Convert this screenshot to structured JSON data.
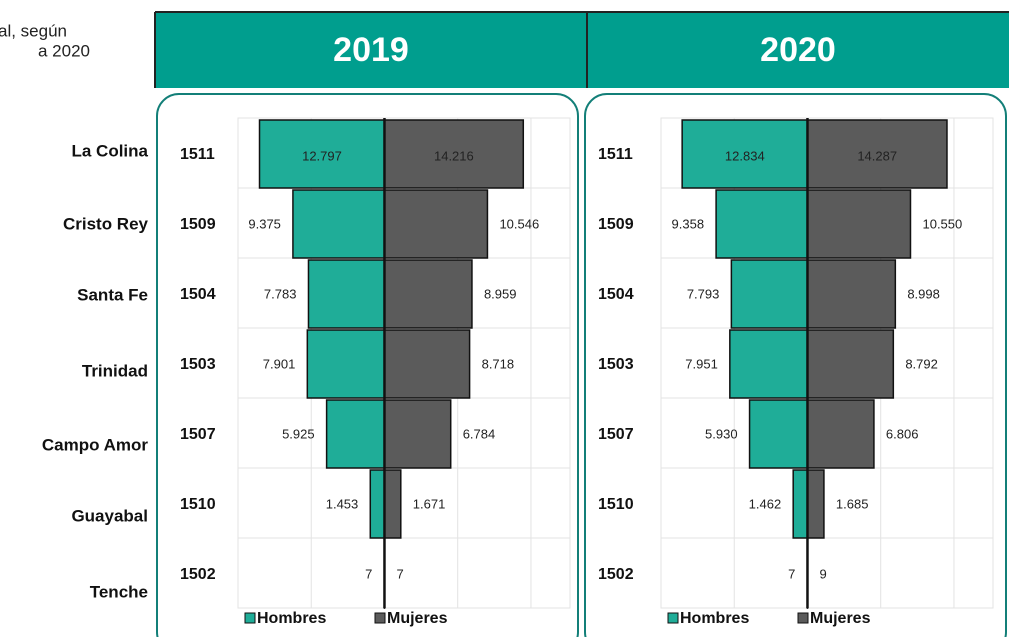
{
  "header": {
    "title_lines": [
      "al, según",
      "a 2020"
    ]
  },
  "row_labels": [
    "La Colina",
    "Cristo Rey",
    "Santa Fe",
    "Trinidad",
    "Campo Amor",
    "Guayabal",
    "Tenche"
  ],
  "chart_data": [
    {
      "type": "bar",
      "orientation": "horizontal",
      "title": "2019",
      "categories": [
        "1511",
        "1509",
        "1504",
        "1503",
        "1507",
        "1510",
        "1502"
      ],
      "series": [
        {
          "name": "Hombres",
          "color": "#1fad98",
          "direction": "left",
          "values": [
            12797,
            9375,
            7783,
            7901,
            5925,
            1453,
            7
          ],
          "value_labels": [
            "12.797",
            "9.375",
            "7.783",
            "7.901",
            "5.925",
            "1.453",
            "7"
          ]
        },
        {
          "name": "Mujeres",
          "color": "#5b5b5b",
          "direction": "right",
          "values": [
            14216,
            10546,
            8959,
            8718,
            6784,
            1671,
            7
          ],
          "value_labels": [
            "14.216",
            "10.546",
            "8.959",
            "8.718",
            "6.784",
            "1.671",
            "7"
          ]
        }
      ],
      "xlim": [
        -15000,
        19000
      ],
      "xticks": [
        -15000,
        -7500,
        0,
        7500,
        15000
      ],
      "grid": true,
      "legend": "bottom"
    },
    {
      "type": "bar",
      "orientation": "horizontal",
      "title": "2020",
      "categories": [
        "1511",
        "1509",
        "1504",
        "1503",
        "1507",
        "1510",
        "1502"
      ],
      "series": [
        {
          "name": "Hombres",
          "color": "#1fad98",
          "direction": "left",
          "values": [
            12834,
            9358,
            7793,
            7951,
            5930,
            1462,
            7
          ],
          "value_labels": [
            "12.834",
            "9.358",
            "7.793",
            "7.951",
            "5.930",
            "1.462",
            "7"
          ]
        },
        {
          "name": "Mujeres",
          "color": "#5b5b5b",
          "direction": "right",
          "values": [
            14287,
            10550,
            8998,
            8792,
            6806,
            1685,
            9
          ],
          "value_labels": [
            "14.287",
            "10.550",
            "8.998",
            "8.792",
            "6.806",
            "1.685",
            "9"
          ]
        }
      ],
      "xlim": [
        -15000,
        19000
      ],
      "xticks": [
        -15000,
        -7500,
        0,
        7500,
        15000
      ],
      "grid": true,
      "legend": "bottom"
    }
  ]
}
